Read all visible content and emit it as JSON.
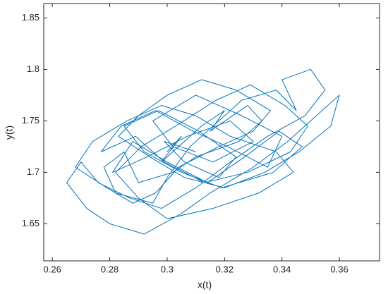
{
  "chart_data": {
    "type": "line",
    "xlabel": "x(t)",
    "ylabel": "y(t)",
    "color": "#0072bd",
    "xlim": [
      0.257,
      0.374
    ],
    "ylim": [
      1.614,
      1.864
    ],
    "xticks": [
      0.26,
      0.28,
      {
        "value": 0.3,
        "label": "0.3"
      },
      0.32,
      0.34,
      0.36
    ],
    "yticks": [
      1.65,
      {
        "value": 1.7,
        "label": "1.7"
      },
      1.75,
      {
        "value": 1.8,
        "label": "1.8"
      },
      1.85
    ],
    "grid": false,
    "x": [
      0.3,
      0.305,
      0.298,
      0.312,
      0.32,
      0.315,
      0.328,
      0.333,
      0.325,
      0.31,
      0.302,
      0.29,
      0.285,
      0.278,
      0.282,
      0.295,
      0.3,
      0.308,
      0.318,
      0.326,
      0.338,
      0.345,
      0.34,
      0.35,
      0.355,
      0.348,
      0.335,
      0.322,
      0.31,
      0.298,
      0.287,
      0.276,
      0.27,
      0.265,
      0.272,
      0.28,
      0.292,
      0.305,
      0.315,
      0.33,
      0.342,
      0.352,
      0.36,
      0.357,
      0.346,
      0.334,
      0.32,
      0.306,
      0.294,
      0.283,
      0.29,
      0.3,
      0.312,
      0.324,
      0.336,
      0.33,
      0.318,
      0.304,
      0.296,
      0.288,
      0.279,
      0.268,
      0.274,
      0.286,
      0.298,
      0.31,
      0.322,
      0.338,
      0.344,
      0.332,
      0.316,
      0.3,
      0.29,
      0.282,
      0.291,
      0.303,
      0.317,
      0.329,
      0.341,
      0.349,
      0.343,
      0.328,
      0.313,
      0.299,
      0.289,
      0.277,
      0.284,
      0.296,
      0.309,
      0.321,
      0.335,
      0.34,
      0.326,
      0.31,
      0.295,
      0.302,
      0.316,
      0.33,
      0.322,
      0.307,
      0.293,
      0.281,
      0.288,
      0.3,
      0.314,
      0.327,
      0.339,
      0.347,
      0.337,
      0.319,
      0.305,
      0.292,
      0.285,
      0.297,
      0.311,
      0.324,
      0.318,
      0.306,
      0.299,
      0.31
    ],
    "values": [
      1.72,
      1.735,
      1.71,
      1.745,
      1.76,
      1.74,
      1.765,
      1.75,
      1.73,
      1.715,
      1.7,
      1.69,
      1.72,
      1.705,
      1.68,
      1.67,
      1.695,
      1.725,
      1.75,
      1.77,
      1.78,
      1.76,
      1.79,
      1.8,
      1.78,
      1.755,
      1.735,
      1.71,
      1.685,
      1.665,
      1.675,
      1.69,
      1.71,
      1.69,
      1.665,
      1.65,
      1.64,
      1.66,
      1.68,
      1.705,
      1.73,
      1.755,
      1.775,
      1.745,
      1.72,
      1.7,
      1.685,
      1.695,
      1.715,
      1.735,
      1.755,
      1.775,
      1.79,
      1.78,
      1.76,
      1.74,
      1.725,
      1.705,
      1.68,
      1.67,
      1.685,
      1.705,
      1.73,
      1.75,
      1.765,
      1.755,
      1.735,
      1.72,
      1.7,
      1.68,
      1.665,
      1.655,
      1.675,
      1.7,
      1.725,
      1.745,
      1.77,
      1.785,
      1.765,
      1.745,
      1.72,
      1.7,
      1.69,
      1.71,
      1.735,
      1.72,
      1.745,
      1.76,
      1.74,
      1.725,
      1.705,
      1.735,
      1.755,
      1.775,
      1.75,
      1.725,
      1.71,
      1.73,
      1.75,
      1.735,
      1.715,
      1.7,
      1.73,
      1.71,
      1.69,
      1.715,
      1.74,
      1.725,
      1.7,
      1.685,
      1.7,
      1.72,
      1.745,
      1.76,
      1.74,
      1.715,
      1.695,
      1.71,
      1.73,
      1.72
    ]
  }
}
